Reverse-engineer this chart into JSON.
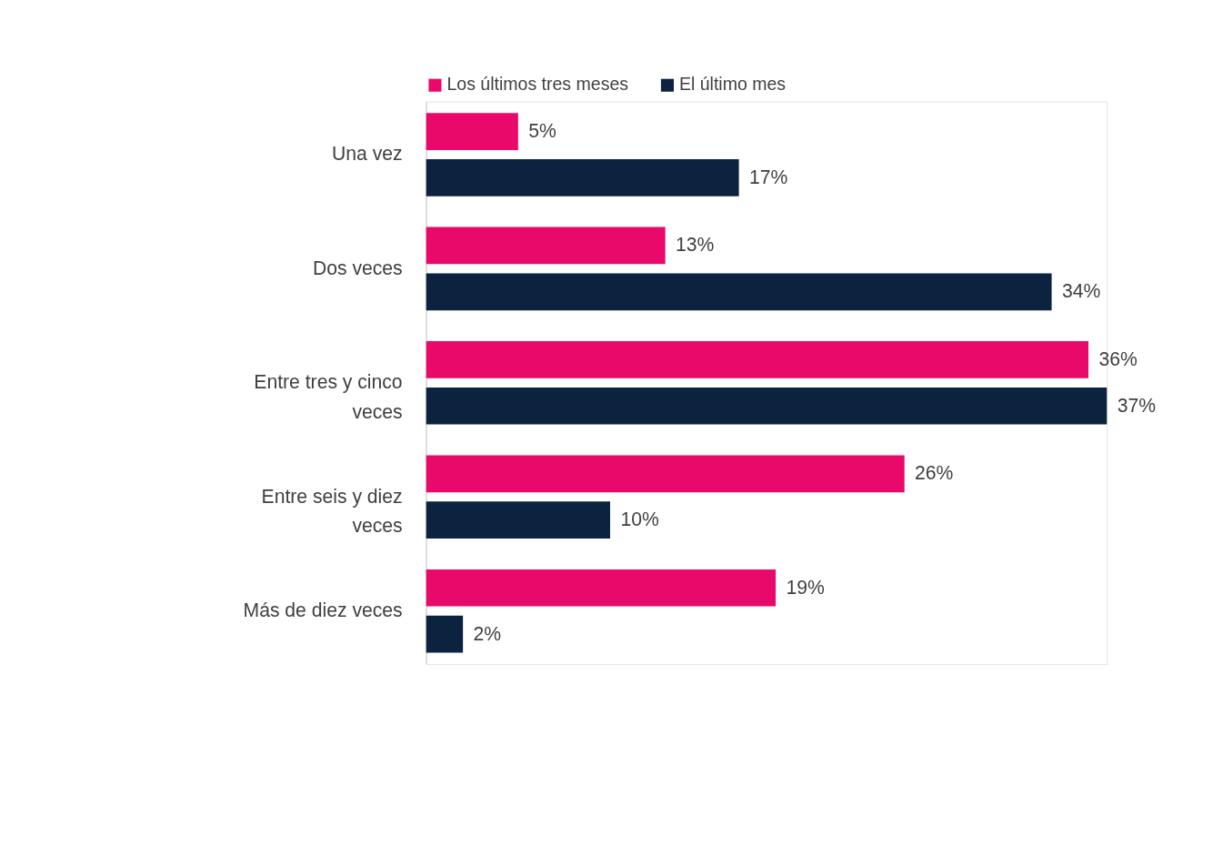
{
  "chart_data": {
    "type": "bar",
    "orientation": "horizontal",
    "categories": [
      "Una vez",
      "Dos veces",
      "Entre tres y cinco veces",
      "Entre seis y diez veces",
      "Más de diez veces"
    ],
    "series": [
      {
        "name": "Los últimos tres meses",
        "color": "#e8096b",
        "values": [
          5,
          13,
          36,
          26,
          19
        ],
        "value_labels": [
          "5%",
          "13%",
          "36%",
          "26%",
          "19%"
        ]
      },
      {
        "name": "El último mes",
        "color": "#0c2340",
        "values": [
          17,
          34,
          37,
          10,
          2
        ],
        "value_labels": [
          "17%",
          "34%",
          "37%",
          "10%",
          "2%"
        ]
      }
    ],
    "legend": "top",
    "grid": false
  }
}
